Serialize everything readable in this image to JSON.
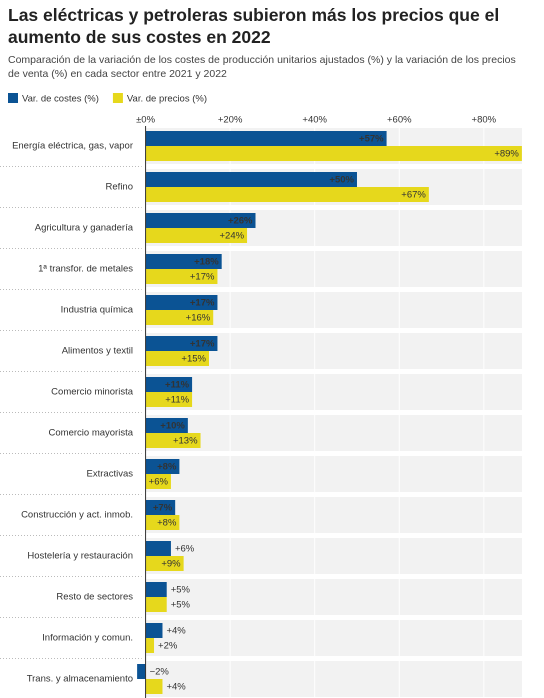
{
  "chart_data": {
    "type": "hbar",
    "title": "Las eléctricas y petroleras subieron más los precios que el aumento de sus costes en 2022",
    "subtitle": "Comparación de la variación de los costes de producción unitarios ajustados (%) y la variación de los precios de venta (%) en cada sector entre 2021 y 2022",
    "categories": [
      "Energía eléctrica, gas, vapor",
      "Refino",
      "Agricultura y ganadería",
      "1ª transfor. de metales",
      "Industria química",
      "Alimentos y textil",
      "Comercio minorista",
      "Comercio mayorista",
      "Extractivas",
      "Construcción y act. inmob.",
      "Hostelería y restauración",
      "Resto de sectores",
      "Información y comun.",
      "Trans. y almacenamiento"
    ],
    "series": [
      {
        "name": "Var. de costes (%)",
        "color": "#0b5394",
        "values": [
          57,
          50,
          26,
          18,
          17,
          17,
          11,
          10,
          8,
          7,
          6,
          5,
          4,
          -2
        ],
        "value_labels": [
          "+57%",
          "+50%",
          "+26%",
          "+18%",
          "+17%",
          "+17%",
          "+11%",
          "+10%",
          "+8%",
          "+7%",
          "+6%",
          "+5%",
          "+4%",
          "−2%"
        ]
      },
      {
        "name": "Var. de precios (%)",
        "color": "#e6d81c",
        "values": [
          89,
          67,
          24,
          17,
          16,
          15,
          11,
          13,
          6,
          8,
          9,
          5,
          2,
          4
        ],
        "value_labels": [
          "+89%",
          "+67%",
          "+24%",
          "+17%",
          "+16%",
          "+15%",
          "+11%",
          "+13%",
          "+6%",
          "+8%",
          "+9%",
          "+5%",
          "+2%",
          "+4%"
        ]
      }
    ],
    "xlim": [
      -2.5,
      89.5
    ],
    "xticks": [
      {
        "value": 0,
        "label": "±0%"
      },
      {
        "value": 20,
        "label": "+20%"
      },
      {
        "value": 40,
        "label": "+40%"
      },
      {
        "value": 60,
        "label": "+60%"
      },
      {
        "value": 80,
        "label": "+80%"
      }
    ],
    "grid": true
  }
}
